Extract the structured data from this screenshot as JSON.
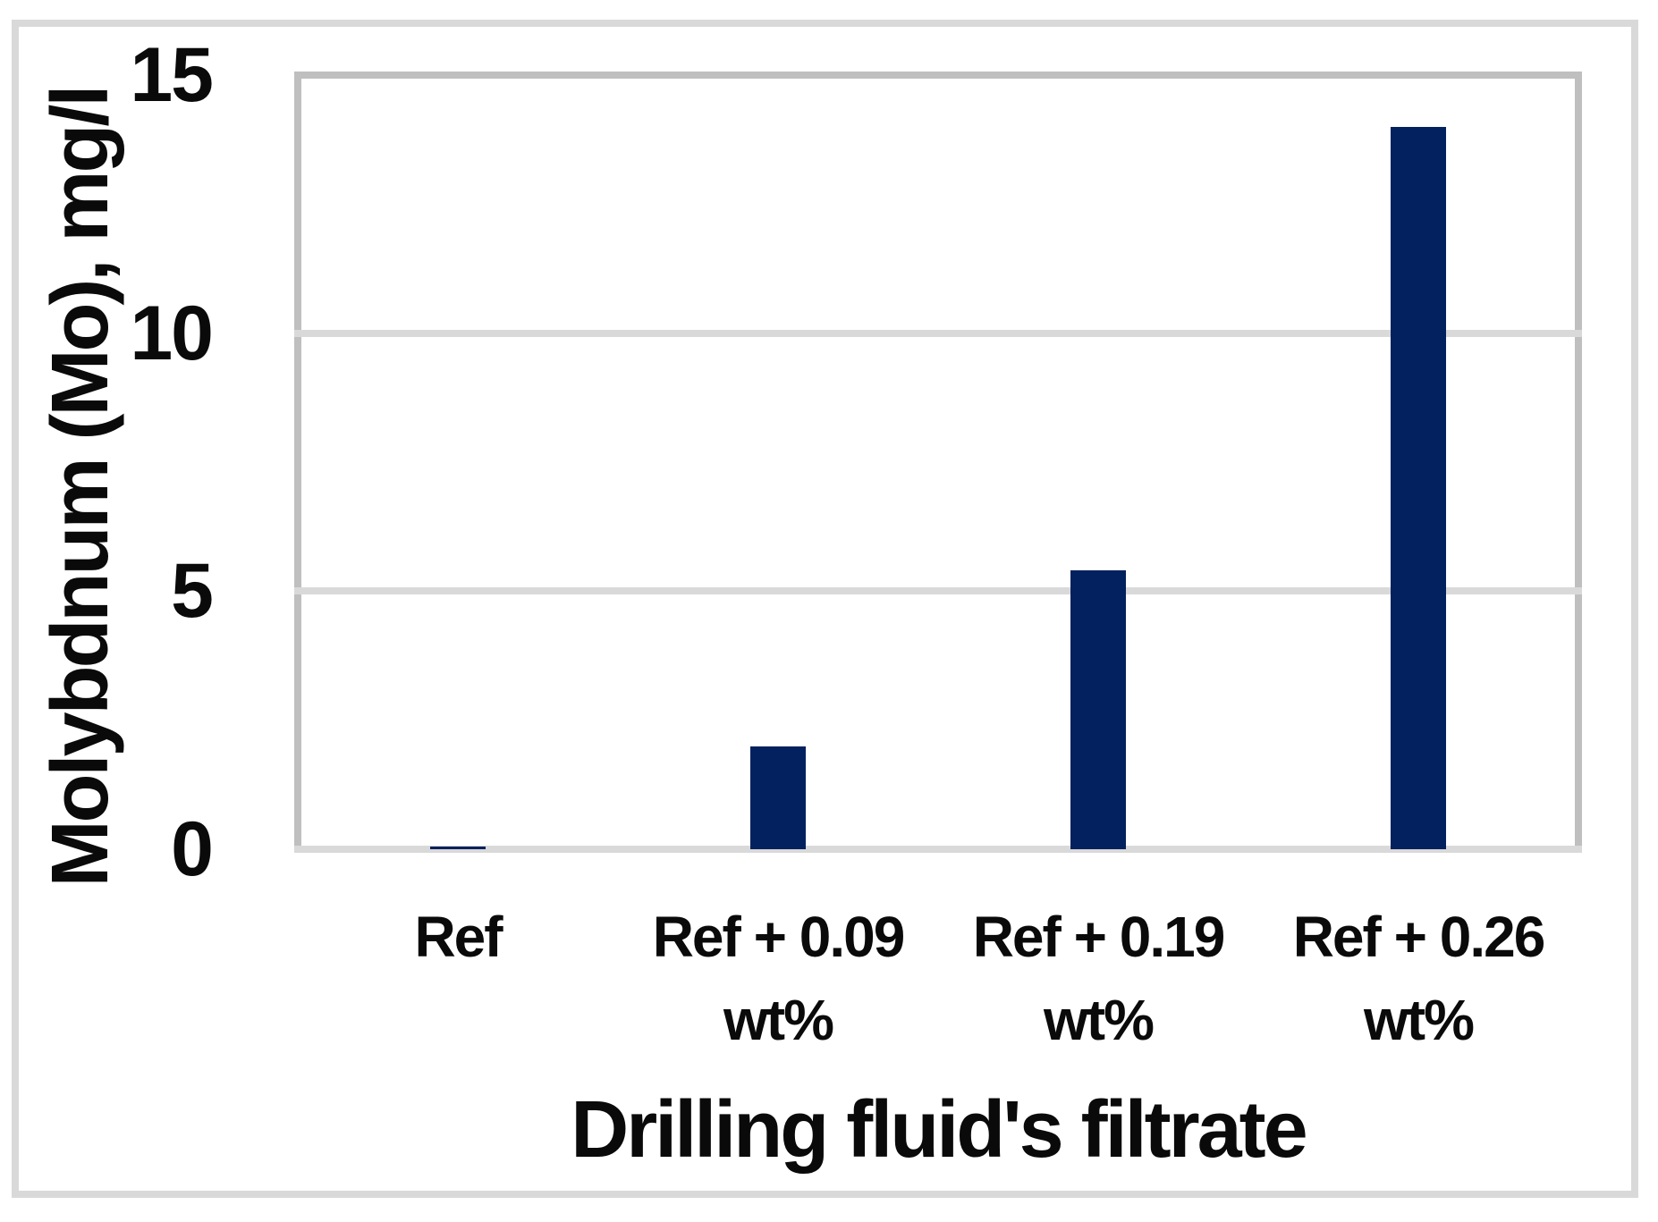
{
  "figure": {
    "background_color": "#ffffff",
    "frame_color": "#d9d9d9",
    "axis_line_color": "#bfbfbf",
    "gridline_color": "#d9d9d9",
    "text_color": "#0a0a0a"
  },
  "chart_data": {
    "type": "bar",
    "title": "",
    "xlabel": "Drilling fluid's filtrate",
    "ylabel": "Molybdnum (Mo), mg/l",
    "categories": [
      "Ref",
      "Ref + 0.09 wt%",
      "Ref + 0.19 wt%",
      "Ref + 0.26 wt%"
    ],
    "category_lines": [
      [
        "Ref"
      ],
      [
        "Ref + 0.09",
        "wt%"
      ],
      [
        "Ref + 0.19",
        "wt%"
      ],
      [
        "Ref + 0.26",
        "wt%"
      ]
    ],
    "values": [
      0.05,
      2.0,
      5.4,
      14.0
    ],
    "ylim": [
      0,
      15
    ],
    "yticks": [
      0,
      5,
      10,
      15
    ],
    "bar_color": "#03215e",
    "grid": "horizontal",
    "legend": "none"
  }
}
